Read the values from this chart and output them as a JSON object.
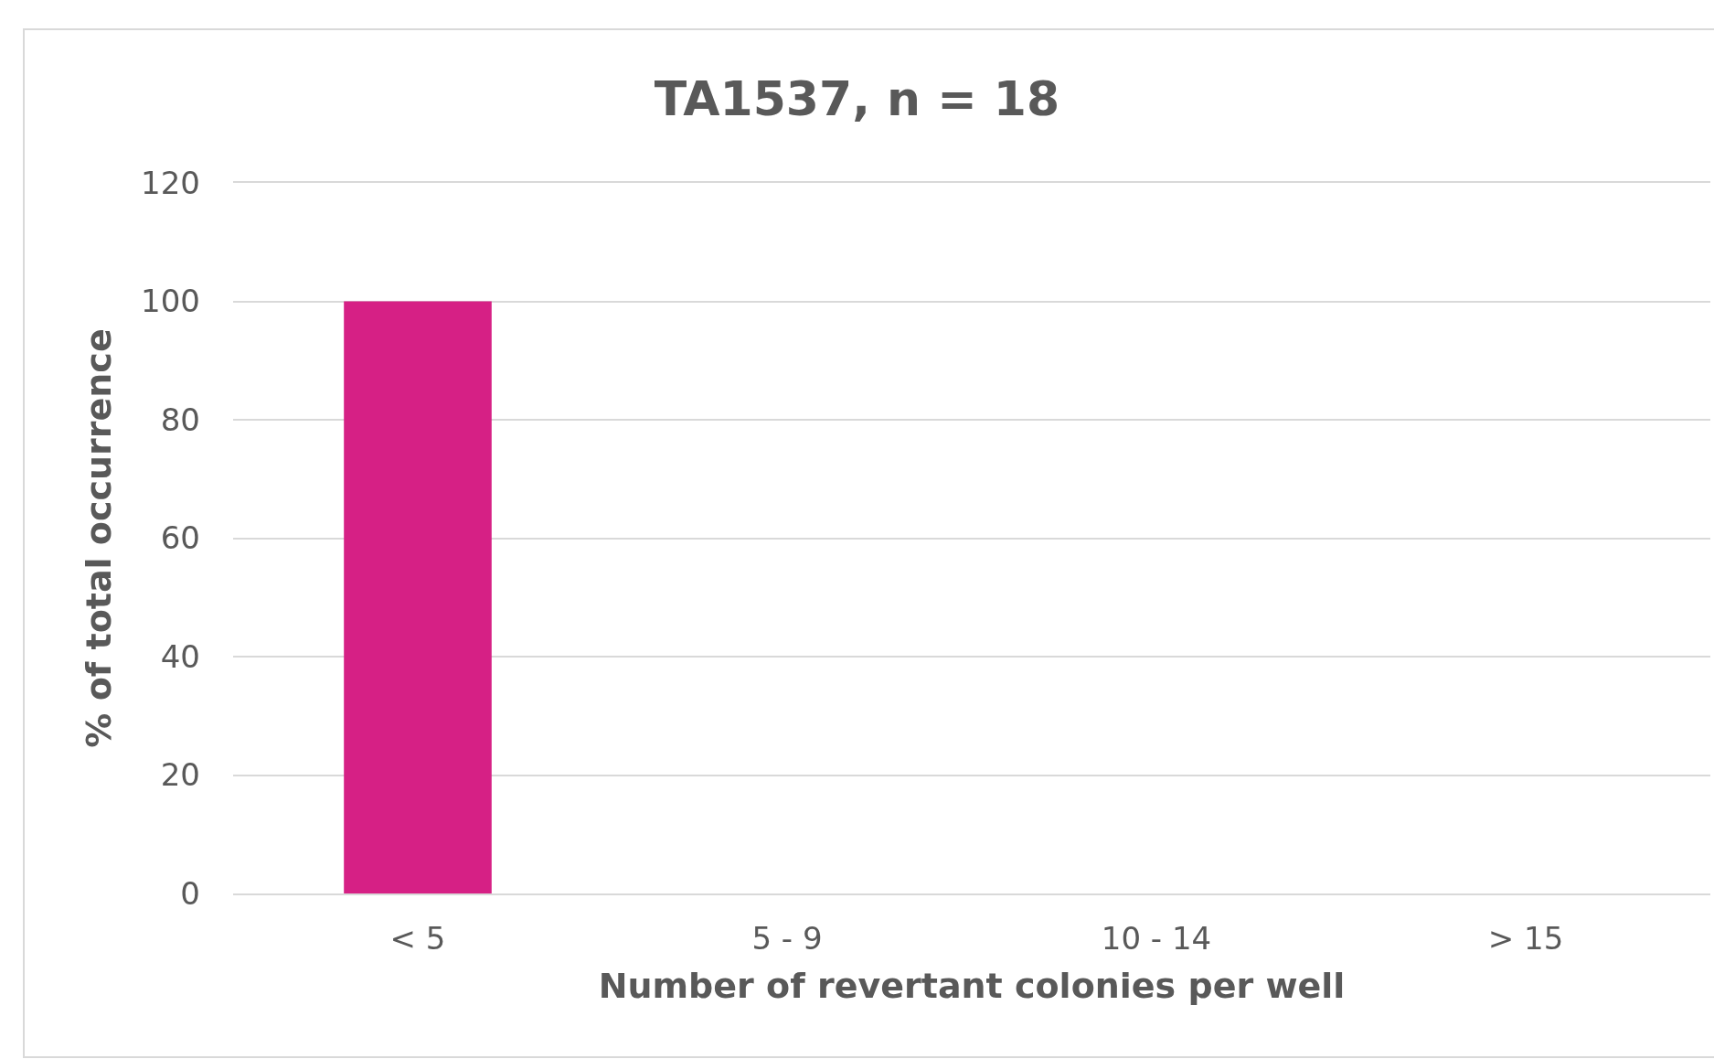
{
  "chart_data": {
    "type": "bar",
    "title": "TA1537, n = 18",
    "xlabel": "Number of revertant colonies per well",
    "ylabel": "% of total occurrence",
    "categories": [
      "< 5",
      "5 - 9",
      "10 - 14",
      "> 15"
    ],
    "values": [
      100,
      0,
      0,
      0
    ],
    "color": "#d62085",
    "ylim": [
      0,
      120
    ],
    "yticks": [
      0,
      20,
      40,
      60,
      80,
      100,
      120
    ],
    "grid": "y"
  }
}
